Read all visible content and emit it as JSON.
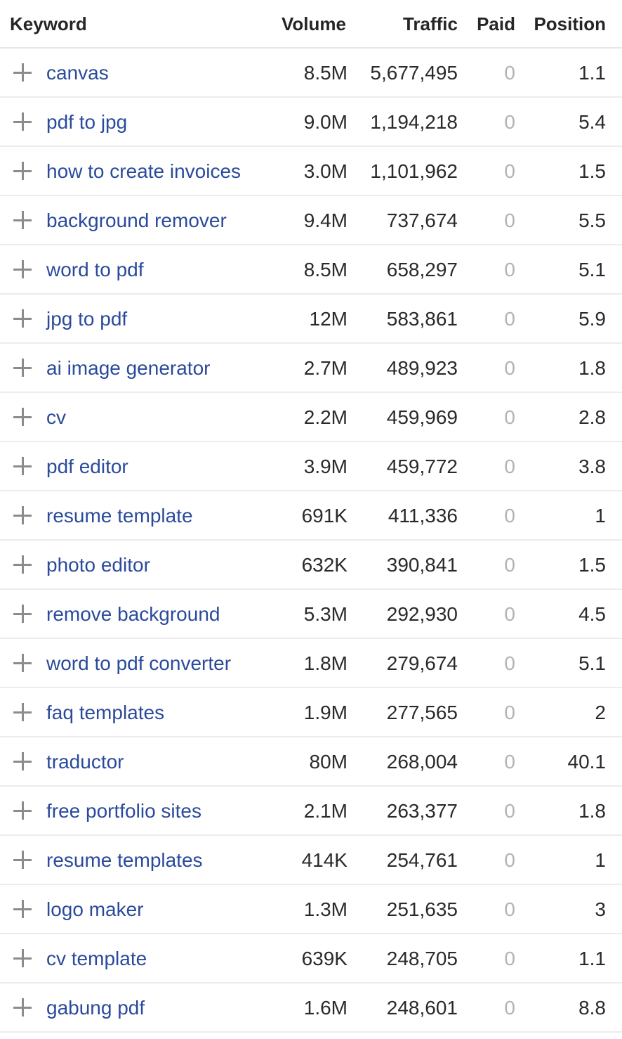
{
  "headers": {
    "keyword": "Keyword",
    "volume": "Volume",
    "traffic": "Traffic",
    "paid": "Paid",
    "position": "Position"
  },
  "rows": [
    {
      "keyword": "canvas",
      "volume": "8.5M",
      "traffic": "5,677,495",
      "paid": "0",
      "position": "1.1"
    },
    {
      "keyword": "pdf to jpg",
      "volume": "9.0M",
      "traffic": "1,194,218",
      "paid": "0",
      "position": "5.4"
    },
    {
      "keyword": "how to create invoices",
      "volume": "3.0M",
      "traffic": "1,101,962",
      "paid": "0",
      "position": "1.5"
    },
    {
      "keyword": "background remover",
      "volume": "9.4M",
      "traffic": "737,674",
      "paid": "0",
      "position": "5.5"
    },
    {
      "keyword": "word to pdf",
      "volume": "8.5M",
      "traffic": "658,297",
      "paid": "0",
      "position": "5.1"
    },
    {
      "keyword": "jpg to pdf",
      "volume": "12M",
      "traffic": "583,861",
      "paid": "0",
      "position": "5.9"
    },
    {
      "keyword": "ai image generator",
      "volume": "2.7M",
      "traffic": "489,923",
      "paid": "0",
      "position": "1.8"
    },
    {
      "keyword": "cv",
      "volume": "2.2M",
      "traffic": "459,969",
      "paid": "0",
      "position": "2.8"
    },
    {
      "keyword": "pdf editor",
      "volume": "3.9M",
      "traffic": "459,772",
      "paid": "0",
      "position": "3.8"
    },
    {
      "keyword": "resume template",
      "volume": "691K",
      "traffic": "411,336",
      "paid": "0",
      "position": "1"
    },
    {
      "keyword": "photo editor",
      "volume": "632K",
      "traffic": "390,841",
      "paid": "0",
      "position": "1.5"
    },
    {
      "keyword": "remove background",
      "volume": "5.3M",
      "traffic": "292,930",
      "paid": "0",
      "position": "4.5"
    },
    {
      "keyword": "word to pdf converter",
      "volume": "1.8M",
      "traffic": "279,674",
      "paid": "0",
      "position": "5.1"
    },
    {
      "keyword": "faq templates",
      "volume": "1.9M",
      "traffic": "277,565",
      "paid": "0",
      "position": "2"
    },
    {
      "keyword": "traductor",
      "volume": "80M",
      "traffic": "268,004",
      "paid": "0",
      "position": "40.1"
    },
    {
      "keyword": "free portfolio sites",
      "volume": "2.1M",
      "traffic": "263,377",
      "paid": "0",
      "position": "1.8"
    },
    {
      "keyword": "resume templates",
      "volume": "414K",
      "traffic": "254,761",
      "paid": "0",
      "position": "1"
    },
    {
      "keyword": "logo maker",
      "volume": "1.3M",
      "traffic": "251,635",
      "paid": "0",
      "position": "3"
    },
    {
      "keyword": "cv template",
      "volume": "639K",
      "traffic": "248,705",
      "paid": "0",
      "position": "1.1"
    },
    {
      "keyword": "gabung pdf",
      "volume": "1.6M",
      "traffic": "248,601",
      "paid": "0",
      "position": "8.8"
    }
  ]
}
